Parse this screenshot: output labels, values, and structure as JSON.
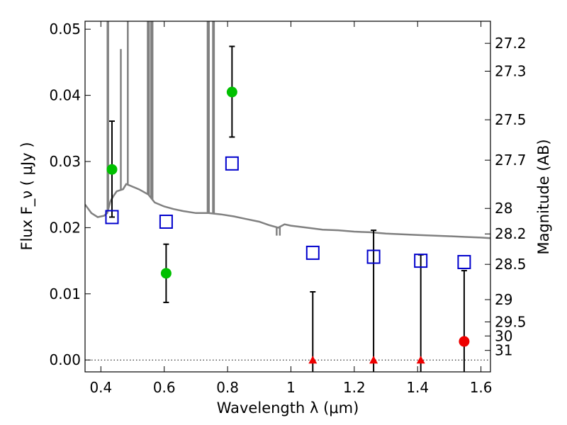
{
  "chart_data": {
    "type": "scatter",
    "title": "",
    "xlabel": "Wavelength  λ (μm)",
    "ylabel": "Flux  F_ν  ( μJy )",
    "ylabel_right": "Magnitude (AB)",
    "xlim": [
      0.35,
      1.63
    ],
    "ylim": [
      -0.0018,
      0.0512
    ],
    "xticks": [
      {
        "value": 0.4,
        "label": "0.4"
      },
      {
        "value": 0.6,
        "label": "0.6"
      },
      {
        "value": 0.8,
        "label": "0.8"
      },
      {
        "value": 1.0,
        "label": "1"
      },
      {
        "value": 1.2,
        "label": "1.2"
      },
      {
        "value": 1.4,
        "label": "1.4"
      },
      {
        "value": 1.6,
        "label": "1.6"
      }
    ],
    "yticks": [
      {
        "value": 0.0,
        "label": "0.00"
      },
      {
        "value": 0.01,
        "label": "0.01"
      },
      {
        "value": 0.02,
        "label": "0.02"
      },
      {
        "value": 0.03,
        "label": "0.03"
      },
      {
        "value": 0.04,
        "label": "0.04"
      },
      {
        "value": 0.05,
        "label": "0.05"
      }
    ],
    "mag_ticks": [
      {
        "mag": 27.2,
        "label": "27.2"
      },
      {
        "mag": 27.3,
        "label": "27.3"
      },
      {
        "mag": 27.5,
        "label": "27.5"
      },
      {
        "mag": 27.7,
        "label": "27.7"
      },
      {
        "mag": 28.0,
        "label": "28"
      },
      {
        "mag": 28.2,
        "label": "28.2"
      },
      {
        "mag": 28.5,
        "label": "28.5"
      },
      {
        "mag": 29.0,
        "label": "29"
      },
      {
        "mag": 29.5,
        "label": "29.5"
      },
      {
        "mag": 30.0,
        "label": "30"
      },
      {
        "mag": 31.0,
        "label": "31"
      }
    ],
    "zero_line": {
      "y": 0.0,
      "style": "dotted"
    },
    "colors": {
      "sed": "#808080",
      "model": "#0000cc",
      "detection": "#00c000",
      "upper_limit": "#ee0000",
      "errorbar": "#000000"
    },
    "series": [
      {
        "kind": "model_sed",
        "points": [
          [
            0.35,
            0.0235
          ],
          [
            0.37,
            0.0222
          ],
          [
            0.39,
            0.0216
          ],
          [
            0.41,
            0.0218
          ],
          [
            0.42,
            0.0222
          ],
          [
            0.43,
            0.024
          ],
          [
            0.44,
            0.0248
          ],
          [
            0.45,
            0.0255
          ],
          [
            0.47,
            0.0258
          ],
          [
            0.48,
            0.0266
          ],
          [
            0.5,
            0.0262
          ],
          [
            0.52,
            0.0258
          ],
          [
            0.55,
            0.025
          ],
          [
            0.57,
            0.0238
          ],
          [
            0.6,
            0.0232
          ],
          [
            0.63,
            0.0228
          ],
          [
            0.66,
            0.0225
          ],
          [
            0.7,
            0.0222
          ],
          [
            0.74,
            0.0222
          ],
          [
            0.78,
            0.022
          ],
          [
            0.82,
            0.0217
          ],
          [
            0.86,
            0.0213
          ],
          [
            0.9,
            0.0209
          ],
          [
            0.93,
            0.0204
          ],
          [
            0.96,
            0.02
          ],
          [
            0.98,
            0.0205
          ],
          [
            1.0,
            0.0203
          ],
          [
            1.05,
            0.02
          ],
          [
            1.1,
            0.0197
          ],
          [
            1.15,
            0.0196
          ],
          [
            1.2,
            0.0194
          ],
          [
            1.25,
            0.0193
          ],
          [
            1.3,
            0.0191
          ],
          [
            1.35,
            0.019
          ],
          [
            1.4,
            0.0189
          ],
          [
            1.45,
            0.0188
          ],
          [
            1.5,
            0.0187
          ],
          [
            1.55,
            0.0186
          ],
          [
            1.6,
            0.0185
          ],
          [
            1.63,
            0.0184
          ]
        ],
        "emission_lines": [
          {
            "x": 0.421,
            "peak": 0.0512
          },
          {
            "x": 0.423,
            "peak": 0.0512
          },
          {
            "x": 0.463,
            "peak": 0.047
          },
          {
            "x": 0.485,
            "peak": 0.0512
          },
          {
            "x": 0.548,
            "peak": 0.0512
          },
          {
            "x": 0.552,
            "peak": 0.0512
          },
          {
            "x": 0.559,
            "peak": 0.0512
          },
          {
            "x": 0.563,
            "peak": 0.0512
          },
          {
            "x": 0.737,
            "peak": 0.0512
          },
          {
            "x": 0.741,
            "peak": 0.0512
          },
          {
            "x": 0.754,
            "peak": 0.0512
          },
          {
            "x": 0.757,
            "peak": 0.0512
          }
        ],
        "absorption_dips": [
          {
            "x": 0.955,
            "depth": 0.0188
          },
          {
            "x": 0.965,
            "depth": 0.0188
          }
        ]
      },
      {
        "kind": "model_photometry",
        "marker": "open-square",
        "points": [
          {
            "x": 0.435,
            "y": 0.0216
          },
          {
            "x": 0.606,
            "y": 0.0209
          },
          {
            "x": 0.814,
            "y": 0.0297
          },
          {
            "x": 1.069,
            "y": 0.0162
          },
          {
            "x": 1.261,
            "y": 0.0156
          },
          {
            "x": 1.41,
            "y": 0.015
          },
          {
            "x": 1.547,
            "y": 0.0148
          }
        ]
      },
      {
        "kind": "detections",
        "marker": "filled-circle",
        "points": [
          {
            "x": 0.435,
            "y": 0.0288,
            "yerr_low": 0.0216,
            "yerr_high": 0.0361
          },
          {
            "x": 0.606,
            "y": 0.0131,
            "yerr_low": 0.0087,
            "yerr_high": 0.0175
          },
          {
            "x": 0.814,
            "y": 0.0405,
            "yerr_low": 0.0337,
            "yerr_high": 0.0474
          }
        ]
      },
      {
        "kind": "upper_limits",
        "points": [
          {
            "x": 1.069,
            "y": 0.0,
            "yerr_low": -0.0018,
            "yerr_high": 0.0103,
            "marker": "filled-triangle"
          },
          {
            "x": 1.261,
            "y": 0.0,
            "yerr_low": -0.0018,
            "yerr_high": 0.0196,
            "marker": "filled-triangle"
          },
          {
            "x": 1.41,
            "y": 0.0,
            "yerr_low": -0.0018,
            "yerr_high": 0.0159,
            "marker": "filled-triangle"
          },
          {
            "x": 1.547,
            "y": 0.0028,
            "yerr_low": -0.0018,
            "yerr_high": 0.0135,
            "marker": "filled-circle"
          }
        ]
      }
    ]
  }
}
